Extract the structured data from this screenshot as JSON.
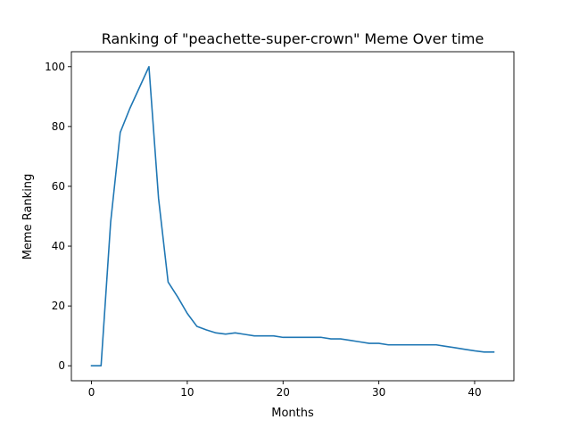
{
  "chart_data": {
    "type": "line",
    "title": "Ranking of \"peachette-super-crown\" Meme Over time",
    "xlabel": "Months",
    "ylabel": "Meme Ranking",
    "xlim": [
      -2.1,
      44.1
    ],
    "ylim": [
      -5,
      105
    ],
    "xticks": [
      0,
      10,
      20,
      30,
      40
    ],
    "yticks": [
      0,
      20,
      40,
      60,
      80,
      100
    ],
    "grid": false,
    "legend": "none",
    "series": [
      {
        "color": "#1f77b4",
        "x": [
          0,
          1,
          2,
          3,
          4,
          5,
          6,
          7,
          8,
          9,
          10,
          11,
          12,
          13,
          14,
          15,
          16,
          17,
          18,
          19,
          20,
          21,
          22,
          23,
          24,
          25,
          26,
          27,
          28,
          29,
          30,
          31,
          32,
          33,
          34,
          35,
          36,
          37,
          38,
          39,
          40,
          41,
          42
        ],
        "y": [
          0,
          0,
          48,
          78,
          86,
          93,
          100,
          56,
          28,
          23,
          17.5,
          13.2,
          12,
          11,
          10.6,
          11,
          10.5,
          10,
          10,
          10,
          9.5,
          9.5,
          9.5,
          9.5,
          9.5,
          9,
          9,
          8.5,
          8,
          7.5,
          7.5,
          7,
          7,
          7,
          7,
          7,
          7,
          6.5,
          6,
          5.5,
          5,
          4.6,
          4.6
        ]
      }
    ]
  }
}
